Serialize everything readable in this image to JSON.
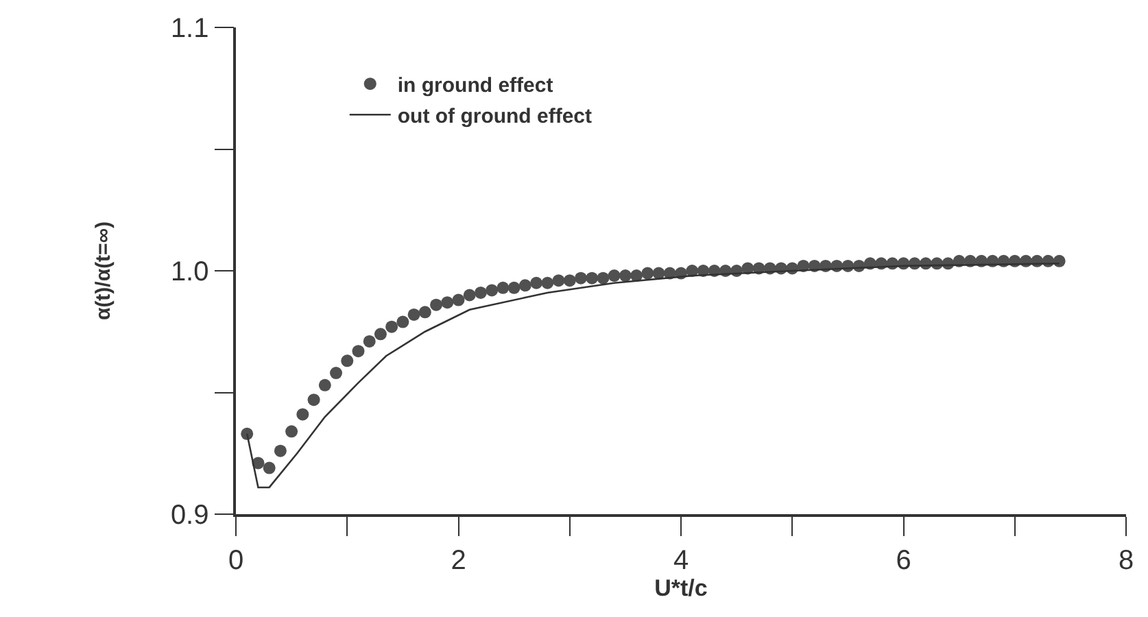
{
  "chart_data": {
    "type": "line",
    "xlabel": "U*t/c",
    "ylabel": "α(t)/α(t=∞)",
    "xlim": [
      0,
      8
    ],
    "xticks": [
      0,
      {
        "value": 1,
        "label": null
      },
      2,
      {
        "value": 3,
        "label": null
      },
      4,
      {
        "value": 5,
        "label": null
      },
      6,
      {
        "value": 7,
        "label": null
      },
      8
    ],
    "ylim": [
      0.9,
      1.1
    ],
    "yticks": [
      {
        "value": 0.9,
        "label": "0.9"
      },
      {
        "value": 0.95,
        "label": null
      },
      {
        "value": 1.0,
        "label": "1.0"
      },
      {
        "value": 1.05,
        "label": null
      },
      {
        "value": 1.1,
        "label": "1.1"
      }
    ],
    "legend": "top left",
    "series": [
      {
        "name": "in ground effect",
        "type": "scatter",
        "marker": "circle",
        "color": "#505050",
        "x": [
          0.1,
          0.2,
          0.3,
          0.4,
          0.5,
          0.6,
          0.7,
          0.8,
          0.9,
          1.0,
          1.1,
          1.2,
          1.3,
          1.4,
          1.5,
          1.6,
          1.7,
          1.8,
          1.9,
          2.0,
          2.1,
          2.2,
          2.3,
          2.4,
          2.5,
          2.6,
          2.7,
          2.8,
          2.9,
          3.0,
          3.1,
          3.2,
          3.3,
          3.4,
          3.5,
          3.6,
          3.7,
          3.8,
          3.9,
          4.0,
          4.1,
          4.2,
          4.3,
          4.4,
          4.5,
          4.6,
          4.7,
          4.8,
          4.9,
          5.0,
          5.1,
          5.2,
          5.3,
          5.4,
          5.5,
          5.6,
          5.7,
          5.8,
          5.9,
          6.0,
          6.1,
          6.2,
          6.3,
          6.4,
          6.5,
          6.6,
          6.7,
          6.8,
          6.9,
          7.0,
          7.1,
          7.2,
          7.3,
          7.4
        ],
        "values": [
          0.933,
          0.921,
          0.919,
          0.926,
          0.934,
          0.941,
          0.947,
          0.953,
          0.958,
          0.963,
          0.967,
          0.971,
          0.974,
          0.977,
          0.979,
          0.982,
          0.983,
          0.986,
          0.987,
          0.988,
          0.99,
          0.991,
          0.992,
          0.993,
          0.993,
          0.994,
          0.995,
          0.995,
          0.996,
          0.996,
          0.997,
          0.997,
          0.997,
          0.998,
          0.998,
          0.998,
          0.999,
          0.999,
          0.999,
          0.999,
          1.0,
          1.0,
          1.0,
          1.0,
          1.0,
          1.001,
          1.001,
          1.001,
          1.001,
          1.001,
          1.002,
          1.002,
          1.002,
          1.002,
          1.002,
          1.002,
          1.003,
          1.003,
          1.003,
          1.003,
          1.003,
          1.003,
          1.003,
          1.003,
          1.004,
          1.004,
          1.004,
          1.004,
          1.004,
          1.004,
          1.004,
          1.004,
          1.004,
          1.004
        ]
      },
      {
        "name": "out of ground effect",
        "color": "#333333",
        "x": [
          0.1,
          0.2,
          0.3,
          0.55,
          0.8,
          1.1,
          1.35,
          1.7,
          2.1,
          2.6,
          2.8,
          3.4,
          4.1,
          5.0,
          6.0,
          7.4
        ],
        "values": [
          0.933,
          0.911,
          0.911,
          0.925,
          0.94,
          0.954,
          0.965,
          0.975,
          0.984,
          0.989,
          0.991,
          0.995,
          0.998,
          1.0,
          1.002,
          1.003
        ]
      }
    ]
  }
}
